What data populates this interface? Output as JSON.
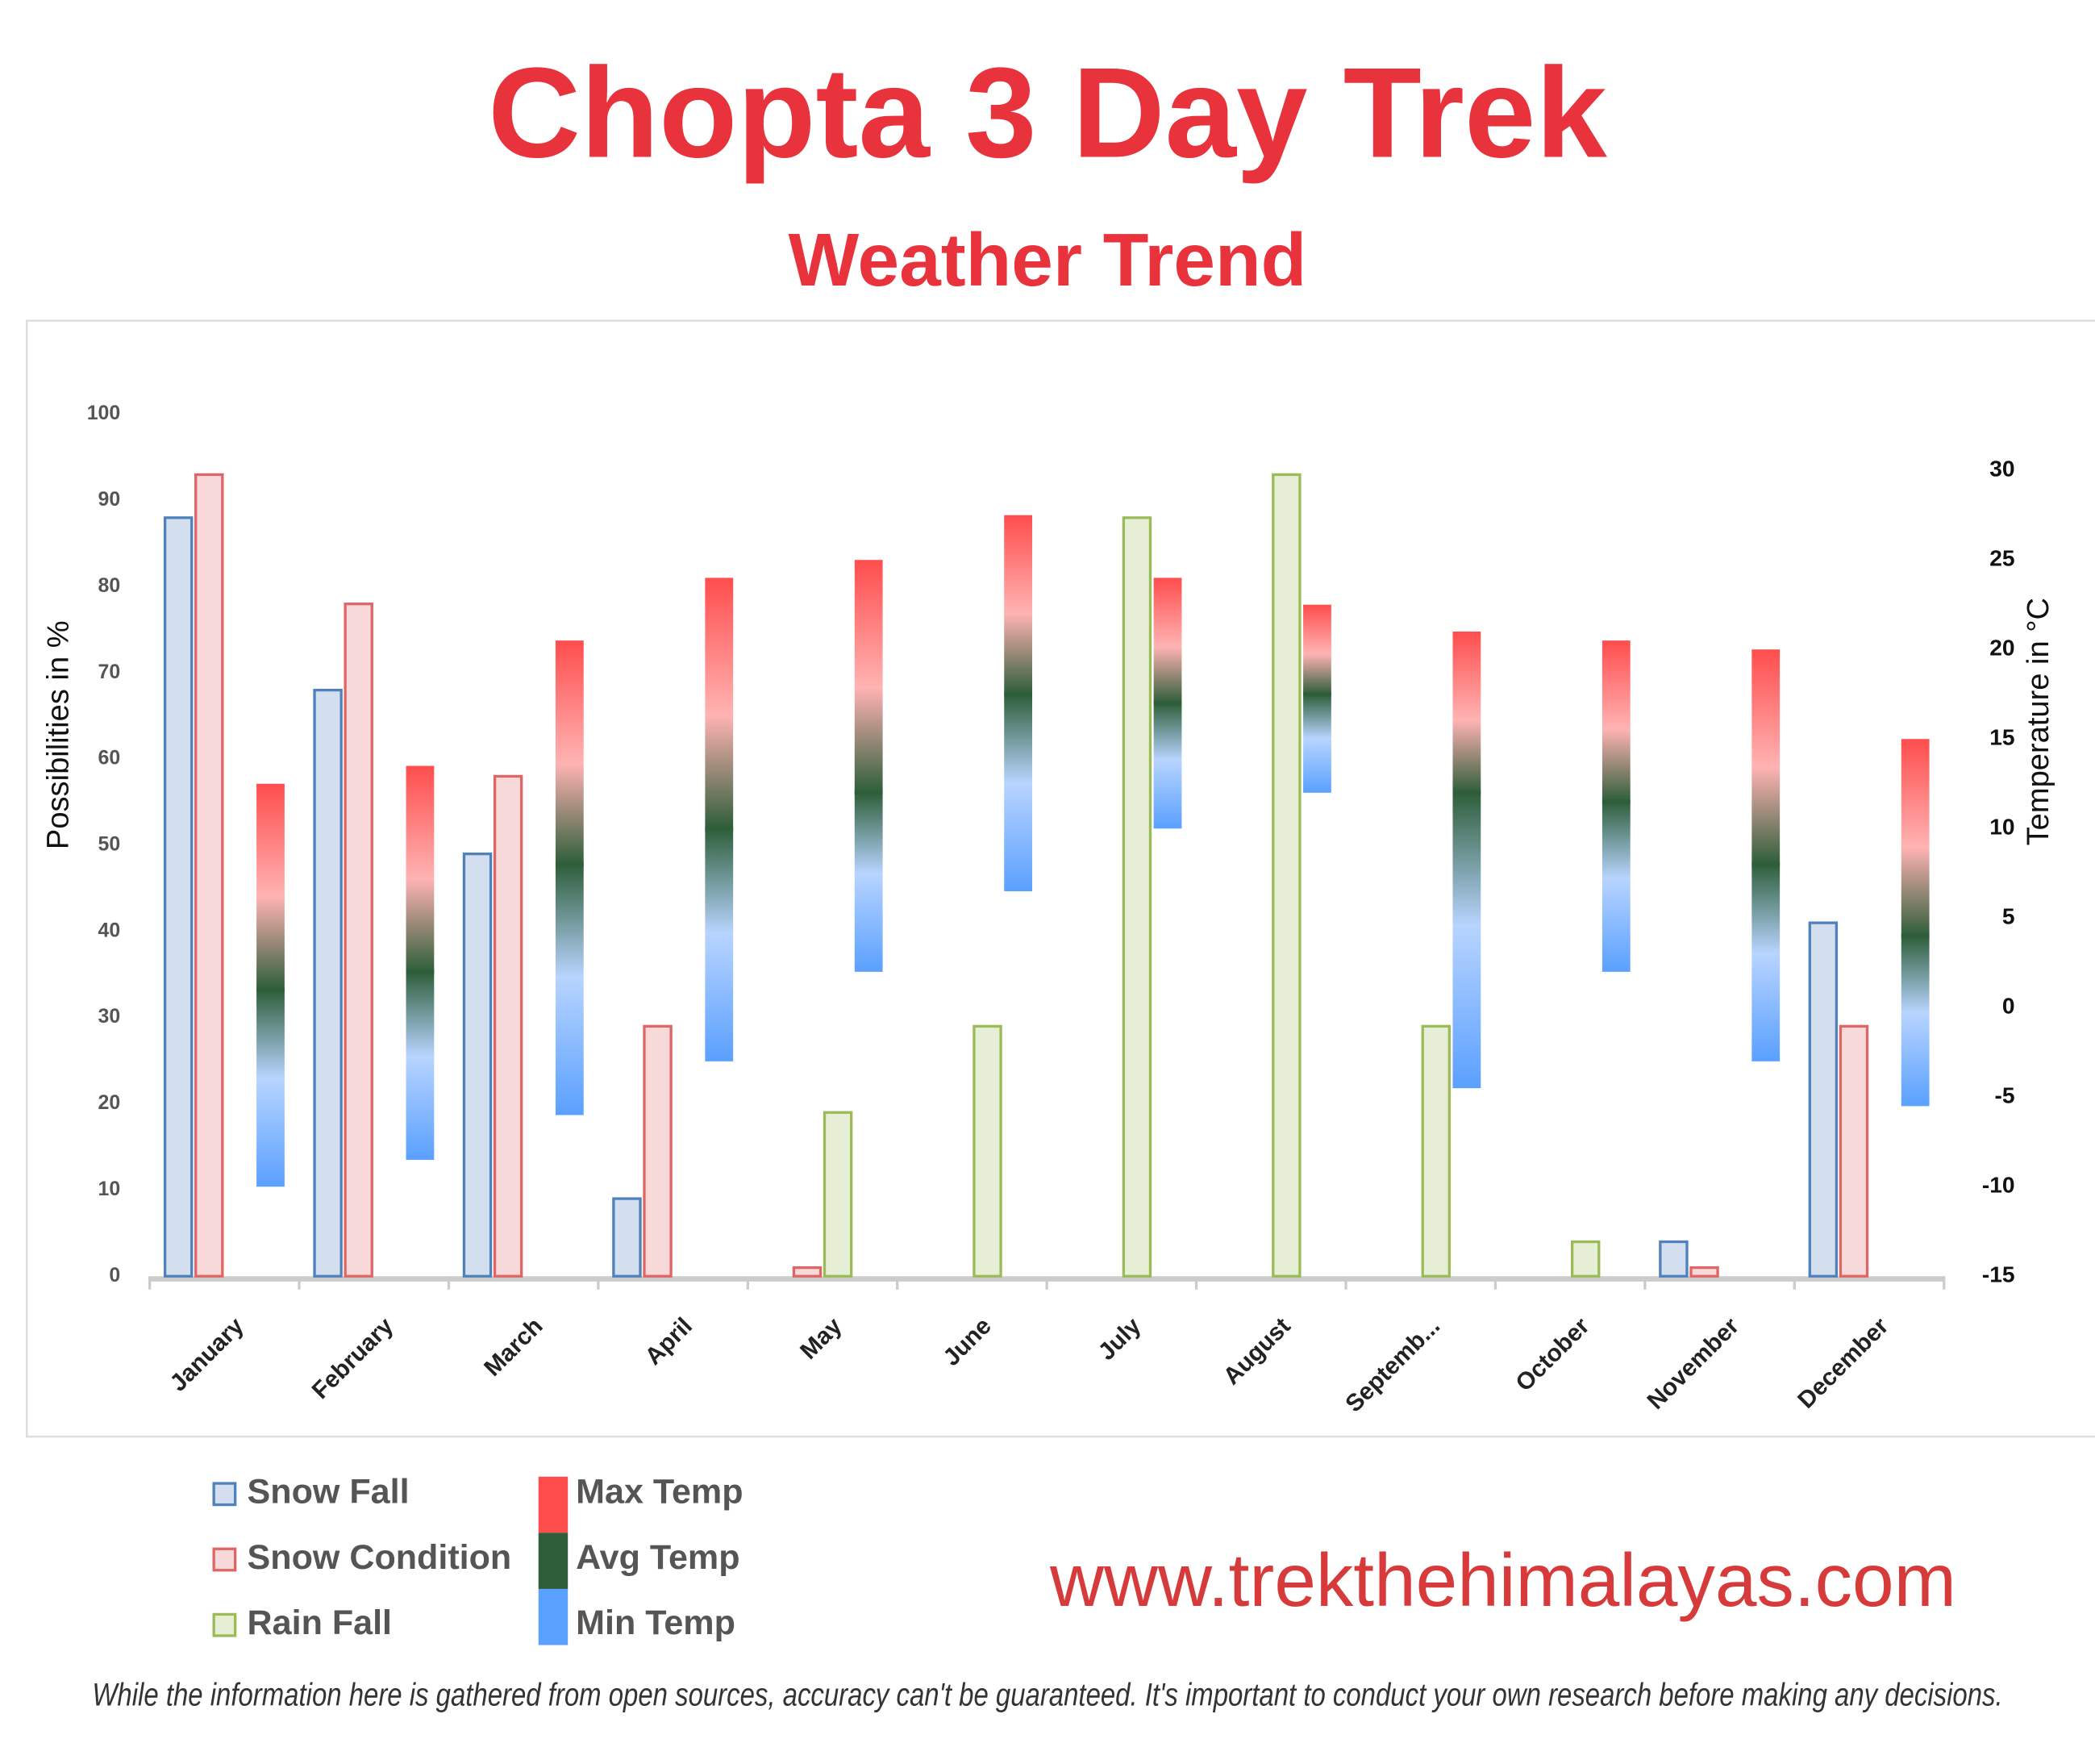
{
  "chart_data": {
    "type": "bar",
    "title": "Chopta 3 Day Trek",
    "subtitle": "Weather Trend",
    "y_label": "Possibilities in %",
    "y2_label": "Temperature in °C",
    "categories": [
      "January",
      "February",
      "March",
      "April",
      "May",
      "June",
      "July",
      "August",
      "Septemb...",
      "October",
      "November",
      "December"
    ],
    "series": [
      {
        "name": "Snow Fall",
        "color": "#4f81bd",
        "values": [
          88,
          68,
          49,
          9,
          0,
          0,
          0,
          0,
          0,
          0,
          4,
          41
        ]
      },
      {
        "name": "Snow Condition",
        "color": "#e06666",
        "values": [
          93,
          78,
          58,
          29,
          1,
          0,
          0,
          0,
          0,
          0,
          1,
          29
        ]
      },
      {
        "name": "Rain Fall",
        "color": "#9bbb59",
        "values": [
          0,
          0,
          0,
          0,
          19,
          29,
          88,
          93,
          29,
          4,
          0,
          0
        ]
      },
      {
        "name": "Max Temp",
        "color": "#ff4d4d",
        "axis": "y2",
        "values": [
          12.5,
          13.5,
          20.5,
          24,
          25,
          27.5,
          24,
          22.5,
          21,
          20.5,
          20,
          15
        ]
      },
      {
        "name": "Avg Temp",
        "color": "#2e5e3a",
        "axis": "y2",
        "values": [
          1,
          2,
          8,
          10,
          12,
          17.5,
          17,
          17.5,
          12,
          11.5,
          8,
          4
        ]
      },
      {
        "name": "Min Temp",
        "color": "#5aa0ff",
        "axis": "y2",
        "values": [
          -10,
          -8.5,
          -6,
          -3,
          2,
          6.5,
          10,
          12,
          -4.5,
          2,
          -3,
          -5.5
        ]
      }
    ],
    "ylim": [
      0,
      100
    ],
    "yticks": [
      0,
      10,
      20,
      30,
      40,
      50,
      60,
      70,
      80,
      90,
      100
    ],
    "y2lim": [
      -15,
      30
    ],
    "y2ticks": [
      -15,
      -10,
      -5,
      0,
      5,
      10,
      15,
      20,
      25,
      30
    ],
    "grid": false
  },
  "footer": {
    "website": "www.trekthehimalayas.com",
    "disclaimer": "While the information here is gathered from open sources, accuracy can't be guaranteed. It's important to conduct your own research before making any decisions."
  }
}
